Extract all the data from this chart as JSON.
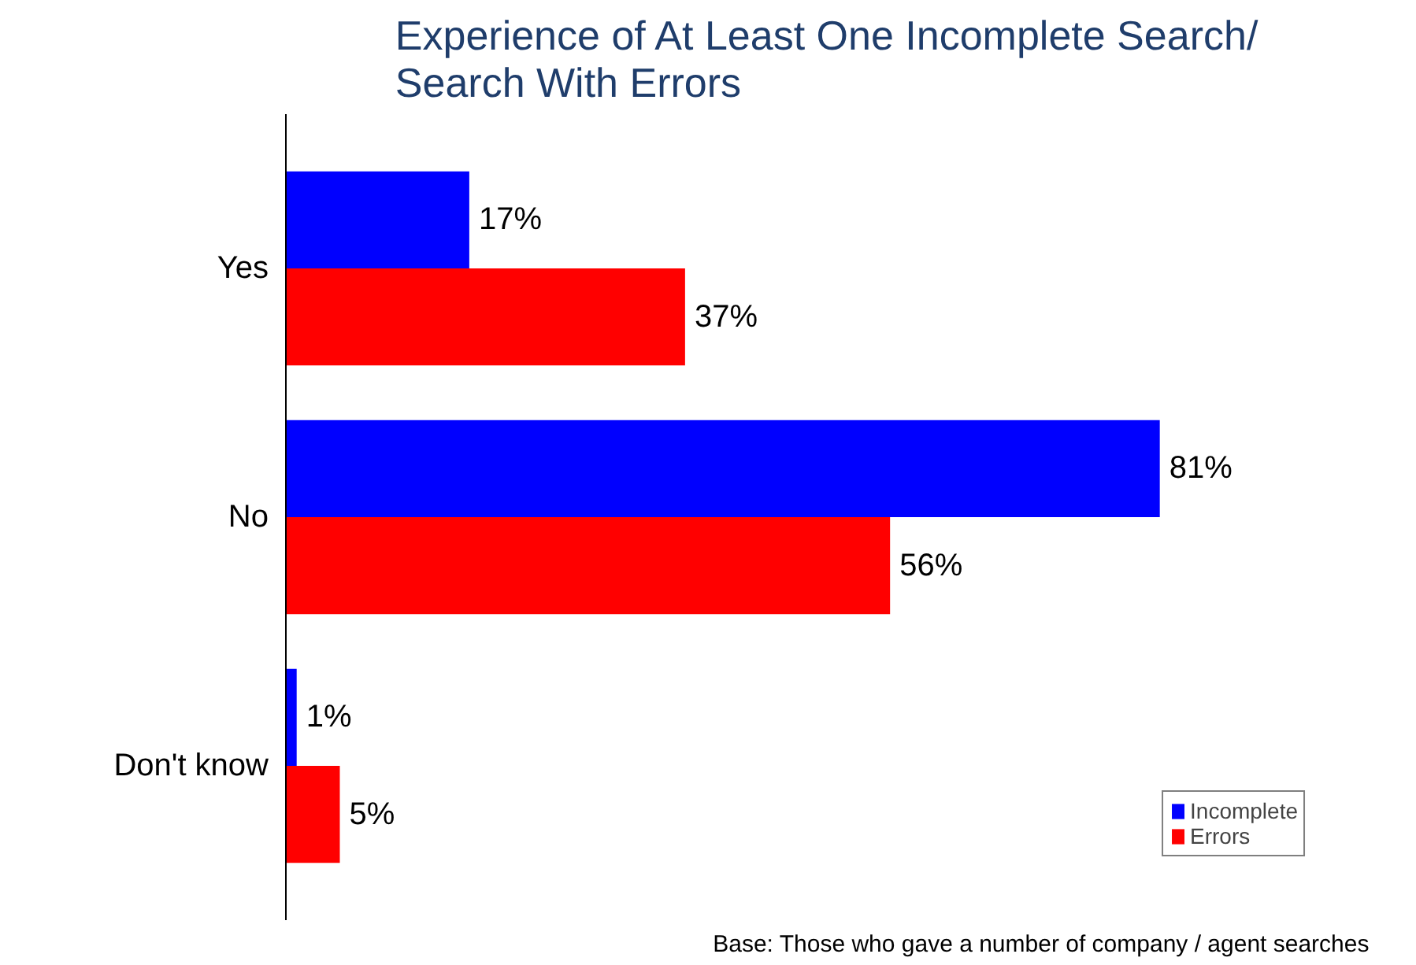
{
  "chart_data": {
    "type": "bar",
    "orientation": "horizontal",
    "title": "Experience of At Least One Incomplete Search/\nSearch With Errors",
    "categories": [
      "Yes",
      "No",
      "Don't know"
    ],
    "series": [
      {
        "name": "Incomplete",
        "color": "#0000ff",
        "values": [
          17,
          81,
          1
        ],
        "value_labels": [
          "17%",
          "81%",
          "1%"
        ]
      },
      {
        "name": "Errors",
        "color": "#ff0000",
        "values": [
          37,
          56,
          5
        ],
        "value_labels": [
          "37%",
          "56%",
          "5%"
        ]
      }
    ],
    "legend": "bottom right",
    "grid": false,
    "annotations": [
      "Base: Those who gave a number of company / agent searches"
    ]
  }
}
